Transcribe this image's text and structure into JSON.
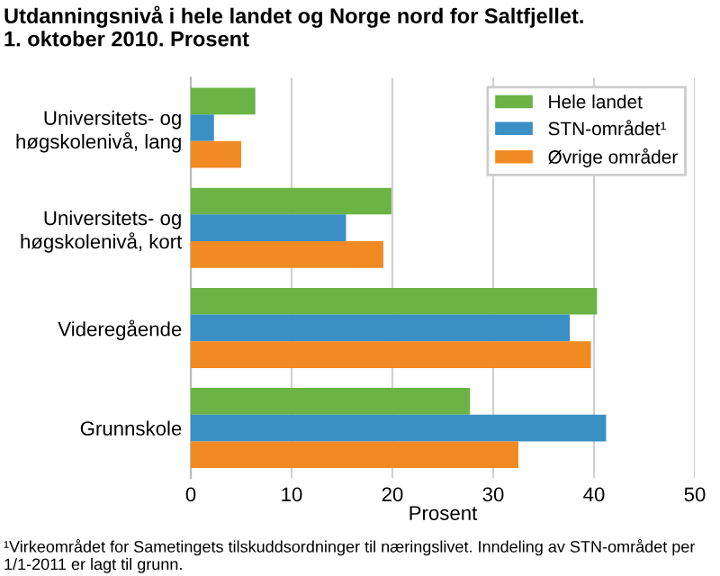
{
  "chart_data": {
    "type": "bar",
    "orientation": "horizontal",
    "title": "Utdanningsnivå i hele landet og Norge nord for Saltfjellet.\n1. oktober 2010. Prosent",
    "xlabel": "Prosent",
    "categories": [
      "Universitets- og\nhøgskolenivå, lang",
      "Universitets- og\nhøgskolenivå, kort",
      "Videregående",
      "Grunnskole"
    ],
    "series": [
      {
        "name": "Hele landet",
        "color": "#6ab344",
        "values": [
          6.4,
          19.9,
          40.3,
          27.7
        ]
      },
      {
        "name": "STN-området¹",
        "color": "#3a8fc4",
        "values": [
          2.3,
          15.4,
          37.6,
          41.2
        ]
      },
      {
        "name": "Øvrige områder",
        "color": "#f28a24",
        "values": [
          5.0,
          19.1,
          39.7,
          32.5
        ]
      }
    ],
    "xlim": [
      0,
      50
    ],
    "xticks": [
      0,
      10,
      20,
      30,
      40,
      50
    ],
    "grid": "x",
    "legend": "top right",
    "annotations": [
      "¹Virkeområdet for Sametingets tilskuddsordninger til næringslivet. Inndeling av STN-området per 1/1-2011 er lagt til grunn."
    ]
  }
}
